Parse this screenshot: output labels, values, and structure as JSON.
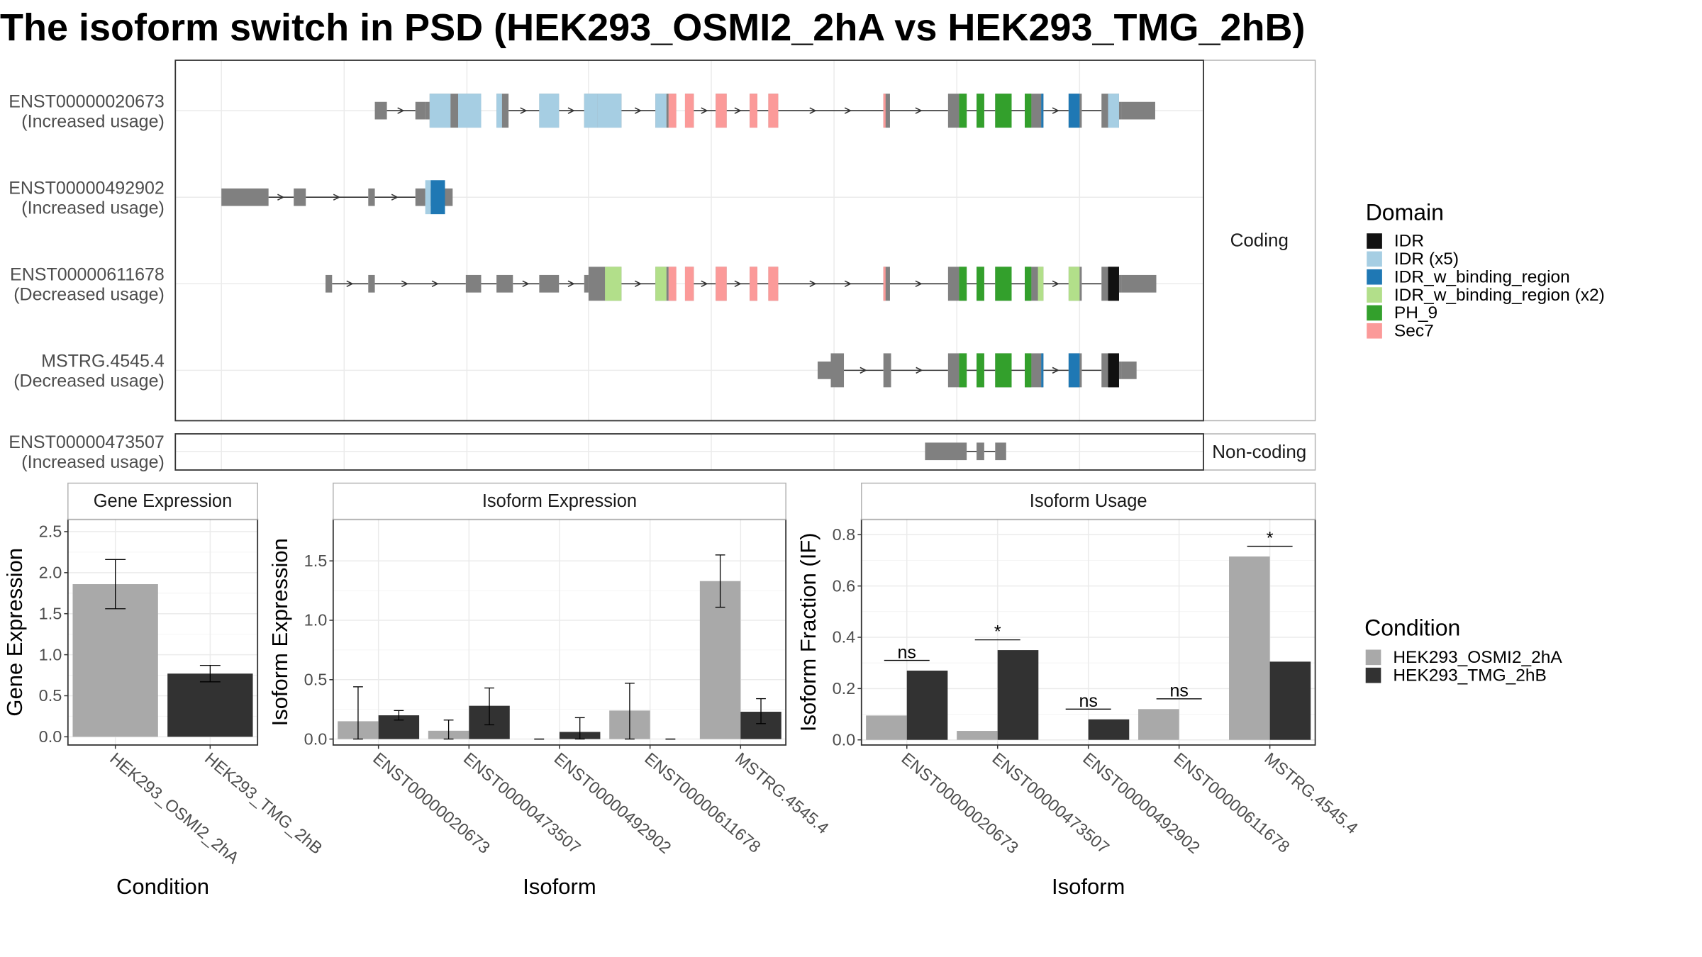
{
  "title": "The isoform switch in PSD (HEK293_OSMI2_2hA vs HEK293_TMG_2hB)",
  "chart_data": [
    {
      "type": "gene-structure",
      "coding_panel_label": "Coding",
      "noncoding_panel_label": "Non-coding",
      "isoforms": [
        {
          "name": "ENST00000020673",
          "usage": "(Increased usage)",
          "group": "coding",
          "exons": [
            [
              342,
              353
            ],
            [
              379,
              388
            ],
            [
              388,
              392
            ],
            [
              392,
              411
            ],
            [
              411,
              418
            ],
            [
              418,
              439
            ],
            [
              453,
              458
            ],
            [
              458,
              464
            ],
            [
              492,
              510
            ],
            [
              533,
              545
            ],
            [
              545,
              567
            ],
            [
              598,
              608
            ],
            [
              608,
              610
            ],
            [
              610,
              617
            ],
            [
              625,
              633
            ],
            [
              653,
              663
            ],
            [
              684,
              691
            ],
            [
              701,
              710
            ],
            [
              806,
              812
            ],
            [
              865,
              875
            ],
            [
              875,
              882
            ],
            [
              891,
              898
            ],
            [
              908,
              923
            ],
            [
              935,
              941
            ],
            [
              941,
              950
            ],
            [
              950,
              952
            ],
            [
              975,
              985
            ],
            [
              985,
              987
            ],
            [
              1005,
              1011
            ],
            [
              1011,
              1021
            ],
            [
              1021,
              1023
            ],
            [
              1023,
              1054
            ]
          ],
          "cds": [
            [
              392,
              1021
            ]
          ],
          "domains": [
            {
              "name": "IDR (x5)",
              "spans": [
                [
                  392,
                  411
                ],
                [
                  418,
                  439
                ],
                [
                  453,
                  458
                ],
                [
                  464,
                  464
                ],
                [
                  492,
                  510
                ],
                [
                  533,
                  545
                ],
                [
                  545,
                  567
                ],
                [
                  598,
                  608
                ]
              ]
            },
            {
              "name": "Sec7",
              "spans": [
                [
                  610,
                  617
                ],
                [
                  625,
                  633
                ],
                [
                  653,
                  663
                ],
                [
                  684,
                  691
                ],
                [
                  701,
                  710
                ],
                [
                  806,
                  808
                ]
              ]
            },
            {
              "name": "PH_9",
              "spans": [
                [
                  875,
                  882
                ],
                [
                  891,
                  898
                ],
                [
                  908,
                  923
                ],
                [
                  935,
                  941
                ]
              ]
            },
            {
              "name": "IDR_w_binding_region",
              "spans": [
                [
                  950,
                  952
                ],
                [
                  975,
                  985
                ]
              ]
            },
            {
              "name": "IDR (x5)",
              "spans": [
                [
                  1011,
                  1021
                ]
              ]
            }
          ]
        },
        {
          "name": "ENST00000492902",
          "usage": "(Increased usage)",
          "group": "coding",
          "exons": [
            [
              202,
              245
            ],
            [
              268,
              279
            ],
            [
              336,
              342
            ],
            [
              379,
              388
            ],
            [
              388,
              413
            ]
          ],
          "cds": [
            [
              388,
              409
            ]
          ],
          "domains": [
            {
              "name": "IDR (x5)",
              "spans": [
                [
                  388,
                  393
                ]
              ]
            },
            {
              "name": "IDR_w_binding_region",
              "spans": [
                [
                  393,
                  406
                ]
              ]
            }
          ]
        },
        {
          "name": "ENST00000611678",
          "usage": "(Decreased usage)",
          "group": "coding",
          "exons": [
            [
              297,
              303
            ],
            [
              336,
              342
            ],
            [
              425,
              439
            ],
            [
              453,
              468
            ],
            [
              492,
              510
            ],
            [
              533,
              537
            ],
            [
              537,
              552
            ],
            [
              552,
              567
            ],
            [
              598,
              608
            ],
            [
              608,
              610
            ],
            [
              610,
              617
            ],
            [
              625,
              633
            ],
            [
              653,
              663
            ],
            [
              684,
              691
            ],
            [
              701,
              710
            ],
            [
              806,
              812
            ],
            [
              865,
              875
            ],
            [
              875,
              882
            ],
            [
              891,
              898
            ],
            [
              908,
              923
            ],
            [
              935,
              941
            ],
            [
              941,
              947
            ],
            [
              947,
              952
            ],
            [
              975,
              985
            ],
            [
              985,
              987
            ],
            [
              1005,
              1011
            ],
            [
              1011,
              1021
            ],
            [
              1021,
              1023
            ],
            [
              1023,
              1055
            ]
          ],
          "cds": [
            [
              537,
              1021
            ]
          ],
          "domains": [
            {
              "name": "IDR_w_binding_region (x2)",
              "spans": [
                [
                  552,
                  567
                ],
                [
                  598,
                  608
                ]
              ]
            },
            {
              "name": "Sec7",
              "spans": [
                [
                  610,
                  617
                ],
                [
                  625,
                  633
                ],
                [
                  653,
                  663
                ],
                [
                  684,
                  691
                ],
                [
                  701,
                  710
                ],
                [
                  806,
                  808
                ]
              ]
            },
            {
              "name": "PH_9",
              "spans": [
                [
                  875,
                  882
                ],
                [
                  891,
                  898
                ],
                [
                  908,
                  923
                ],
                [
                  935,
                  941
                ]
              ]
            },
            {
              "name": "IDR_w_binding_region (x2)",
              "spans": [
                [
                  947,
                  952
                ],
                [
                  975,
                  985
                ]
              ]
            },
            {
              "name": "IDR",
              "spans": [
                [
                  1011,
                  1021
                ]
              ]
            }
          ]
        },
        {
          "name": "MSTRG.4545.4",
          "usage": "(Decreased usage)",
          "group": "coding",
          "exons": [
            [
              746,
              758
            ],
            [
              758,
              770
            ],
            [
              806,
              813
            ],
            [
              865,
              875
            ],
            [
              875,
              882
            ],
            [
              891,
              898
            ],
            [
              908,
              923
            ],
            [
              935,
              941
            ],
            [
              941,
              950
            ],
            [
              950,
              952
            ],
            [
              975,
              985
            ],
            [
              985,
              987
            ],
            [
              1005,
              1011
            ],
            [
              1011,
              1021
            ],
            [
              1021,
              1023
            ],
            [
              1023,
              1037
            ]
          ],
          "cds": [
            [
              758,
              1021
            ]
          ],
          "domains": [
            {
              "name": "PH_9",
              "spans": [
                [
                  875,
                  882
                ],
                [
                  891,
                  898
                ],
                [
                  908,
                  923
                ],
                [
                  935,
                  941
                ]
              ]
            },
            {
              "name": "IDR_w_binding_region",
              "spans": [
                [
                  950,
                  952
                ],
                [
                  975,
                  985
                ]
              ]
            },
            {
              "name": "IDR",
              "spans": [
                [
                  1011,
                  1021
                ]
              ]
            }
          ]
        },
        {
          "name": "ENST00000473507",
          "usage": "(Increased usage)",
          "group": "noncoding",
          "exons": [
            [
              844,
              882
            ],
            [
              891,
              898
            ],
            [
              908,
              918
            ]
          ],
          "cds": [],
          "domains": []
        }
      ],
      "introns": {
        "ENST00000020673": [
          [
            353,
            379
          ],
          [
            464,
            492
          ],
          [
            510,
            533
          ],
          [
            567,
            598
          ],
          [
            633,
            653
          ],
          [
            663,
            684
          ],
          [
            691,
            701
          ],
          [
            710,
            806
          ],
          [
            812,
            865
          ],
          [
            882,
            891
          ],
          [
            898,
            908
          ],
          [
            923,
            935
          ],
          [
            952,
            975
          ],
          [
            987,
            1005
          ]
        ],
        "ENST00000492902": [
          [
            245,
            268
          ],
          [
            279,
            336
          ],
          [
            342,
            379
          ]
        ],
        "ENST00000611678": [
          [
            303,
            336
          ],
          [
            342,
            425
          ],
          [
            439,
            453
          ],
          [
            468,
            492
          ],
          [
            510,
            533
          ],
          [
            567,
            598
          ],
          [
            633,
            653
          ],
          [
            663,
            684
          ],
          [
            691,
            701
          ],
          [
            710,
            806
          ],
          [
            812,
            865
          ],
          [
            882,
            891
          ],
          [
            898,
            908
          ],
          [
            923,
            935
          ],
          [
            952,
            975
          ],
          [
            987,
            1005
          ]
        ],
        "MSTRG.4545.4": [
          [
            770,
            806
          ],
          [
            813,
            865
          ],
          [
            882,
            891
          ],
          [
            898,
            908
          ],
          [
            923,
            935
          ],
          [
            952,
            975
          ],
          [
            987,
            1005
          ]
        ],
        "ENST00000473507": [
          [
            882,
            891
          ],
          [
            898,
            908
          ]
        ]
      }
    },
    {
      "type": "bar",
      "title": "Gene Expression",
      "xlabel": "Condition",
      "ylabel": "Gene Expression",
      "categories": [
        "HEK293_OSMI2_2hA",
        "HEK293_TMG_2hB"
      ],
      "values": [
        1.86,
        0.77
      ],
      "error_low": [
        1.56,
        0.67
      ],
      "error_high": [
        2.16,
        0.87
      ],
      "colors": [
        "#a9a9a9",
        "#323232"
      ],
      "ylim": [
        -0.1,
        2.65
      ],
      "yticks": [
        0.0,
        0.5,
        1.0,
        1.5,
        2.0,
        2.5
      ],
      "ytick_labels": [
        "0.0",
        "0.5",
        "1.0",
        "1.5",
        "2.0",
        "2.5"
      ]
    },
    {
      "type": "bar",
      "title": "Isoform Expression",
      "xlabel": "Isoform",
      "ylabel": "Isoform Expression",
      "categories": [
        "ENST00000020673",
        "ENST00000473507",
        "ENST00000492902",
        "ENST00000611678",
        "MSTRG.4545.4"
      ],
      "series": [
        {
          "name": "HEK293_OSMI2_2hA",
          "color": "#a9a9a9",
          "values": [
            0.15,
            0.07,
            0.0,
            0.24,
            1.33
          ],
          "error_low": [
            0.0,
            0.0,
            0.0,
            0.0,
            1.11
          ],
          "error_high": [
            0.44,
            0.16,
            0.0,
            0.47,
            1.55
          ]
        },
        {
          "name": "HEK293_TMG_2hB",
          "color": "#323232",
          "values": [
            0.2,
            0.28,
            0.06,
            0.0,
            0.23
          ],
          "error_low": [
            0.16,
            0.12,
            0.0,
            0.0,
            0.13
          ],
          "error_high": [
            0.24,
            0.43,
            0.18,
            0.0,
            0.34
          ]
        }
      ],
      "ylim": [
        -0.05,
        1.85
      ],
      "yticks": [
        0.0,
        0.5,
        1.0,
        1.5
      ],
      "ytick_labels": [
        "0.0",
        "0.5",
        "1.0",
        "1.5"
      ]
    },
    {
      "type": "bar",
      "title": "Isoform Usage",
      "xlabel": "Isoform",
      "ylabel": "Isoform Fraction (IF)",
      "categories": [
        "ENST00000020673",
        "ENST00000473507",
        "ENST00000492902",
        "ENST00000611678",
        "MSTRG.4545.4"
      ],
      "series": [
        {
          "name": "HEK293_OSMI2_2hA",
          "color": "#a9a9a9",
          "values": [
            0.095,
            0.035,
            0.0,
            0.12,
            0.715
          ]
        },
        {
          "name": "HEK293_TMG_2hB",
          "color": "#323232",
          "values": [
            0.27,
            0.35,
            0.08,
            0.0,
            0.305
          ]
        }
      ],
      "significance": [
        {
          "category": "ENST00000020673",
          "label": "ns",
          "y": 0.31
        },
        {
          "category": "ENST00000473507",
          "label": "*",
          "y": 0.39
        },
        {
          "category": "ENST00000492902",
          "label": "ns",
          "y": 0.12
        },
        {
          "category": "ENST00000611678",
          "label": "ns",
          "y": 0.16
        },
        {
          "category": "MSTRG.4545.4",
          "label": "*",
          "y": 0.755
        }
      ],
      "ylim": [
        -0.02,
        0.86
      ],
      "yticks": [
        0.0,
        0.2,
        0.4,
        0.6,
        0.8
      ],
      "ytick_labels": [
        "0.0",
        "0.2",
        "0.4",
        "0.6",
        "0.8"
      ]
    }
  ],
  "legends": {
    "domain": {
      "title": "Domain",
      "items": [
        {
          "label": "IDR",
          "color": "#111111"
        },
        {
          "label": "IDR (x5)",
          "color": "#a6cee3"
        },
        {
          "label": "IDR_w_binding_region",
          "color": "#1f78b4"
        },
        {
          "label": "IDR_w_binding_region (x2)",
          "color": "#b2df8a"
        },
        {
          "label": "PH_9",
          "color": "#33a02c"
        },
        {
          "label": "Sec7",
          "color": "#fb9a99"
        }
      ]
    },
    "condition": {
      "title": "Condition",
      "items": [
        {
          "label": "HEK293_OSMI2_2hA",
          "color": "#a9a9a9"
        },
        {
          "label": "HEK293_TMG_2hB",
          "color": "#323232"
        }
      ]
    }
  },
  "colors": {
    "exon": "#808080",
    "intron": "#333333",
    "panel_border": "#333333",
    "grid": "#ebebeb",
    "strip_fill": "#ffffff"
  }
}
